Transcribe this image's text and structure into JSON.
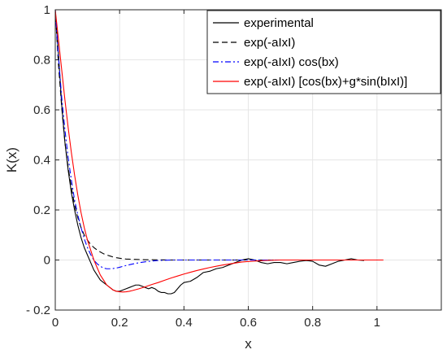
{
  "chart_data": {
    "type": "line",
    "xlabel": "x",
    "ylabel": "K(x)",
    "xlim": [
      0,
      1.2
    ],
    "ylim": [
      -0.2,
      1
    ],
    "xticks": [
      0,
      0.2,
      0.4,
      0.6,
      0.8,
      1
    ],
    "xtick_labels": [
      "0",
      "0.2",
      "0.4",
      "0.6",
      "0.8",
      "1"
    ],
    "yticks": [
      -0.2,
      0,
      0.2,
      0.4,
      0.6,
      0.8,
      1
    ],
    "ytick_labels": [
      "- 0.2",
      "0",
      "0.2",
      "0.4",
      "0.6",
      "0.8",
      "1"
    ],
    "grid": true,
    "legend_position": "top-right",
    "series": [
      {
        "name": "experimental",
        "color": "#000000",
        "style": "solid",
        "x": [
          0,
          0.01,
          0.02,
          0.03,
          0.04,
          0.05,
          0.06,
          0.07,
          0.08,
          0.09,
          0.1,
          0.11,
          0.12,
          0.13,
          0.14,
          0.15,
          0.16,
          0.17,
          0.18,
          0.19,
          0.2,
          0.21,
          0.22,
          0.23,
          0.24,
          0.25,
          0.26,
          0.27,
          0.28,
          0.29,
          0.3,
          0.31,
          0.32,
          0.33,
          0.34,
          0.35,
          0.36,
          0.37,
          0.38,
          0.39,
          0.4,
          0.42,
          0.44,
          0.46,
          0.48,
          0.5,
          0.52,
          0.54,
          0.56,
          0.58,
          0.6,
          0.62,
          0.64,
          0.66,
          0.68,
          0.7,
          0.72,
          0.74,
          0.76,
          0.78,
          0.8,
          0.82,
          0.84,
          0.86,
          0.88,
          0.9,
          0.92,
          0.94,
          0.96
        ],
        "y": [
          0.99,
          0.82,
          0.62,
          0.47,
          0.36,
          0.27,
          0.2,
          0.14,
          0.09,
          0.05,
          0.02,
          -0.01,
          -0.04,
          -0.06,
          -0.08,
          -0.09,
          -0.1,
          -0.11,
          -0.12,
          -0.125,
          -0.125,
          -0.12,
          -0.115,
          -0.11,
          -0.105,
          -0.1,
          -0.1,
          -0.105,
          -0.11,
          -0.115,
          -0.11,
          -0.115,
          -0.125,
          -0.13,
          -0.13,
          -0.135,
          -0.135,
          -0.13,
          -0.115,
          -0.1,
          -0.09,
          -0.085,
          -0.07,
          -0.05,
          -0.045,
          -0.035,
          -0.03,
          -0.02,
          -0.01,
          0,
          0.005,
          0,
          -0.01,
          -0.015,
          -0.01,
          -0.01,
          -0.015,
          -0.01,
          -0.005,
          -0.002,
          -0.005,
          -0.02,
          -0.025,
          -0.015,
          -0.005,
          0,
          0.005,
          0,
          -0.002
        ]
      },
      {
        "name": "exp(-aIxI)",
        "color": "#000000",
        "style": "dashed",
        "x": [
          0,
          0.01,
          0.02,
          0.03,
          0.04,
          0.05,
          0.06,
          0.07,
          0.08,
          0.09,
          0.1,
          0.11,
          0.12,
          0.13,
          0.14,
          0.15,
          0.16,
          0.17,
          0.18,
          0.19,
          0.2,
          0.22,
          0.24,
          0.26,
          0.28,
          0.3,
          0.35,
          0.4,
          0.5,
          0.6,
          0.7,
          0.8,
          0.9,
          1.0
        ],
        "y": [
          1,
          0.78,
          0.61,
          0.47,
          0.37,
          0.29,
          0.22,
          0.17,
          0.13,
          0.1,
          0.08,
          0.062,
          0.05,
          0.04,
          0.032,
          0.025,
          0.02,
          0.016,
          0.012,
          0.009,
          0.007,
          0.004,
          0.003,
          0.002,
          0.001,
          0.001,
          0,
          0,
          0,
          0,
          0,
          0,
          0,
          0
        ]
      },
      {
        "name": "exp(-aIxI) cos(bx)",
        "color": "#0000ff",
        "style": "dashdot",
        "x": [
          0,
          0.01,
          0.02,
          0.03,
          0.04,
          0.05,
          0.06,
          0.07,
          0.08,
          0.09,
          0.1,
          0.11,
          0.12,
          0.13,
          0.14,
          0.15,
          0.16,
          0.17,
          0.18,
          0.19,
          0.2,
          0.22,
          0.24,
          0.26,
          0.28,
          0.3,
          0.32,
          0.34,
          0.36,
          0.38,
          0.4,
          0.5,
          0.6,
          0.7,
          0.8,
          0.9,
          1.0
        ],
        "y": [
          1,
          0.81,
          0.65,
          0.52,
          0.41,
          0.32,
          0.24,
          0.18,
          0.13,
          0.085,
          0.05,
          0.022,
          0,
          -0.015,
          -0.025,
          -0.032,
          -0.035,
          -0.035,
          -0.034,
          -0.032,
          -0.029,
          -0.022,
          -0.016,
          -0.011,
          -0.007,
          -0.004,
          -0.002,
          -0.001,
          0,
          0,
          0,
          0,
          0,
          0,
          0,
          0,
          0
        ]
      },
      {
        "name": "exp(-aIxI) [cos(bx)+g*sin(bIxI)]",
        "color": "#ff0000",
        "style": "solid",
        "x": [
          0,
          0.01,
          0.02,
          0.03,
          0.04,
          0.05,
          0.06,
          0.07,
          0.08,
          0.09,
          0.1,
          0.11,
          0.12,
          0.13,
          0.14,
          0.15,
          0.16,
          0.17,
          0.18,
          0.19,
          0.2,
          0.21,
          0.22,
          0.23,
          0.24,
          0.26,
          0.28,
          0.3,
          0.32,
          0.34,
          0.36,
          0.38,
          0.4,
          0.42,
          0.44,
          0.46,
          0.48,
          0.5,
          0.52,
          0.54,
          0.56,
          0.58,
          0.6,
          0.65,
          0.7,
          0.8,
          0.9,
          1.0,
          1.02
        ],
        "y": [
          1,
          0.88,
          0.76,
          0.64,
          0.53,
          0.43,
          0.34,
          0.26,
          0.19,
          0.13,
          0.08,
          0.04,
          0,
          -0.03,
          -0.06,
          -0.08,
          -0.1,
          -0.11,
          -0.12,
          -0.125,
          -0.127,
          -0.128,
          -0.127,
          -0.125,
          -0.122,
          -0.115,
          -0.107,
          -0.098,
          -0.09,
          -0.081,
          -0.072,
          -0.064,
          -0.056,
          -0.049,
          -0.042,
          -0.036,
          -0.03,
          -0.025,
          -0.02,
          -0.016,
          -0.012,
          -0.008,
          -0.006,
          -0.002,
          0,
          0,
          0,
          0,
          0
        ]
      }
    ]
  }
}
